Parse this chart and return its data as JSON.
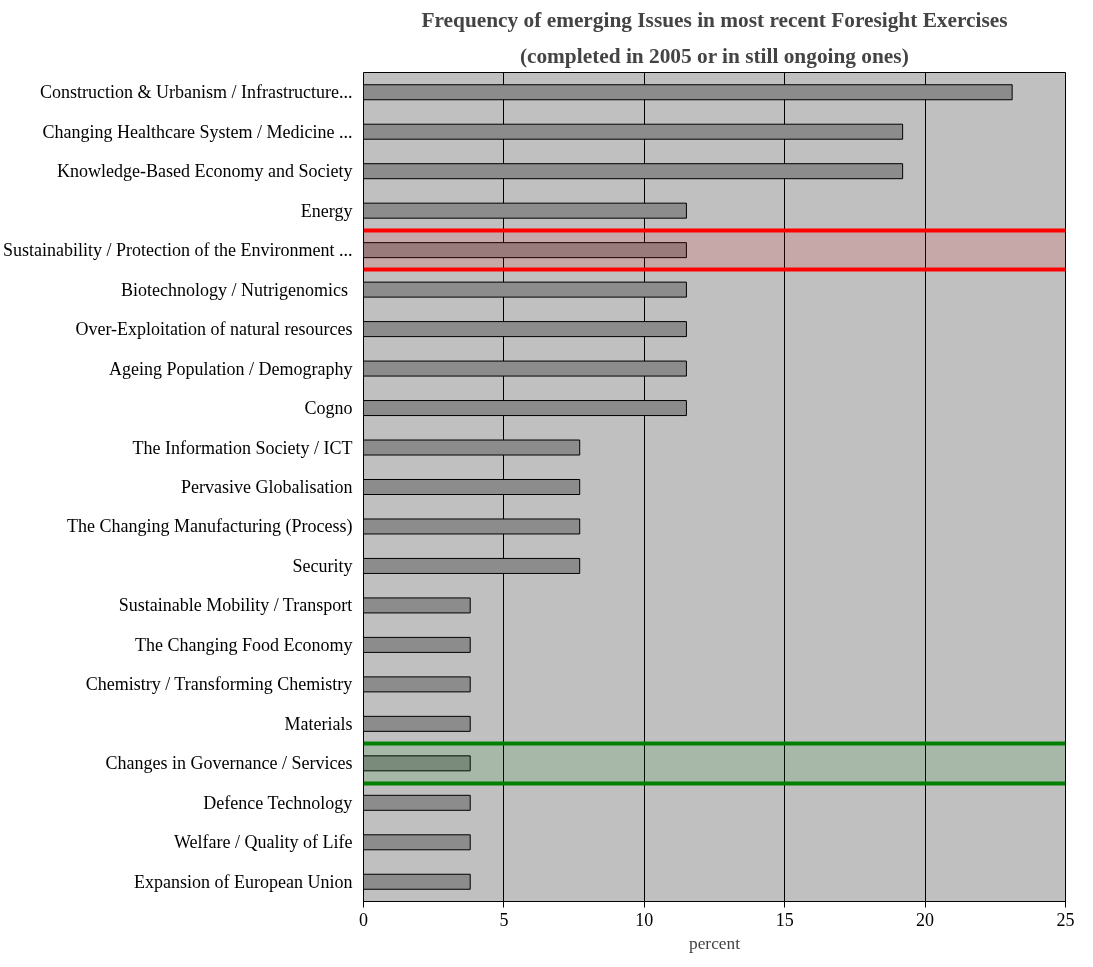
{
  "chart_data": {
    "type": "bar",
    "orientation": "horizontal",
    "title": "Frequency of emerging Issues in most recent Foresight Exercises",
    "subtitle": "(completed in 2005 or in still ongoing ones)",
    "xlabel": "percent",
    "categories": [
      "Construction & Urbanism / Infrastructure...",
      "Changing Healthcare System / Medicine ...",
      "Knowledge-Based Economy and Society",
      "Energy",
      "Sustainability / Protection of the Environment ...",
      "Biotechnology  / Nutrigenomics",
      "Over-Exploitation of natural resources",
      "Ageing Population / Demography",
      "Cogno",
      "The Information Society / ICT",
      "Pervasive Globalisation",
      "The Changing Manufacturing (Process)",
      "Security",
      "Sustainable Mobility / Transport",
      "The Changing Food Economy",
      "Chemistry / Transforming Chemistry",
      "Materials",
      "Changes in Governance / Services",
      "Defence Technology",
      "Welfare / Quality of Life",
      "Expansion of European Union"
    ],
    "values": [
      23.1,
      19.2,
      19.2,
      11.5,
      11.5,
      11.5,
      11.5,
      11.5,
      11.5,
      7.7,
      7.7,
      7.7,
      7.7,
      3.8,
      3.8,
      3.8,
      3.8,
      3.8,
      3.8,
      3.8,
      3.8
    ],
    "color": "#8c8c8c",
    "xlim": [
      0,
      25
    ],
    "xticks": [
      0,
      5,
      10,
      15,
      20,
      25
    ],
    "grid": "x",
    "bands": [
      {
        "axis": "y",
        "from": "Sustainability / Protection of the Environment ...",
        "to": "Sustainability / Protection of the Environment ...",
        "color": "#ff0000"
      },
      {
        "axis": "y",
        "from": "Changes in Governance / Services",
        "to": "Changes in Governance / Services",
        "color": "#008000"
      }
    ]
  }
}
